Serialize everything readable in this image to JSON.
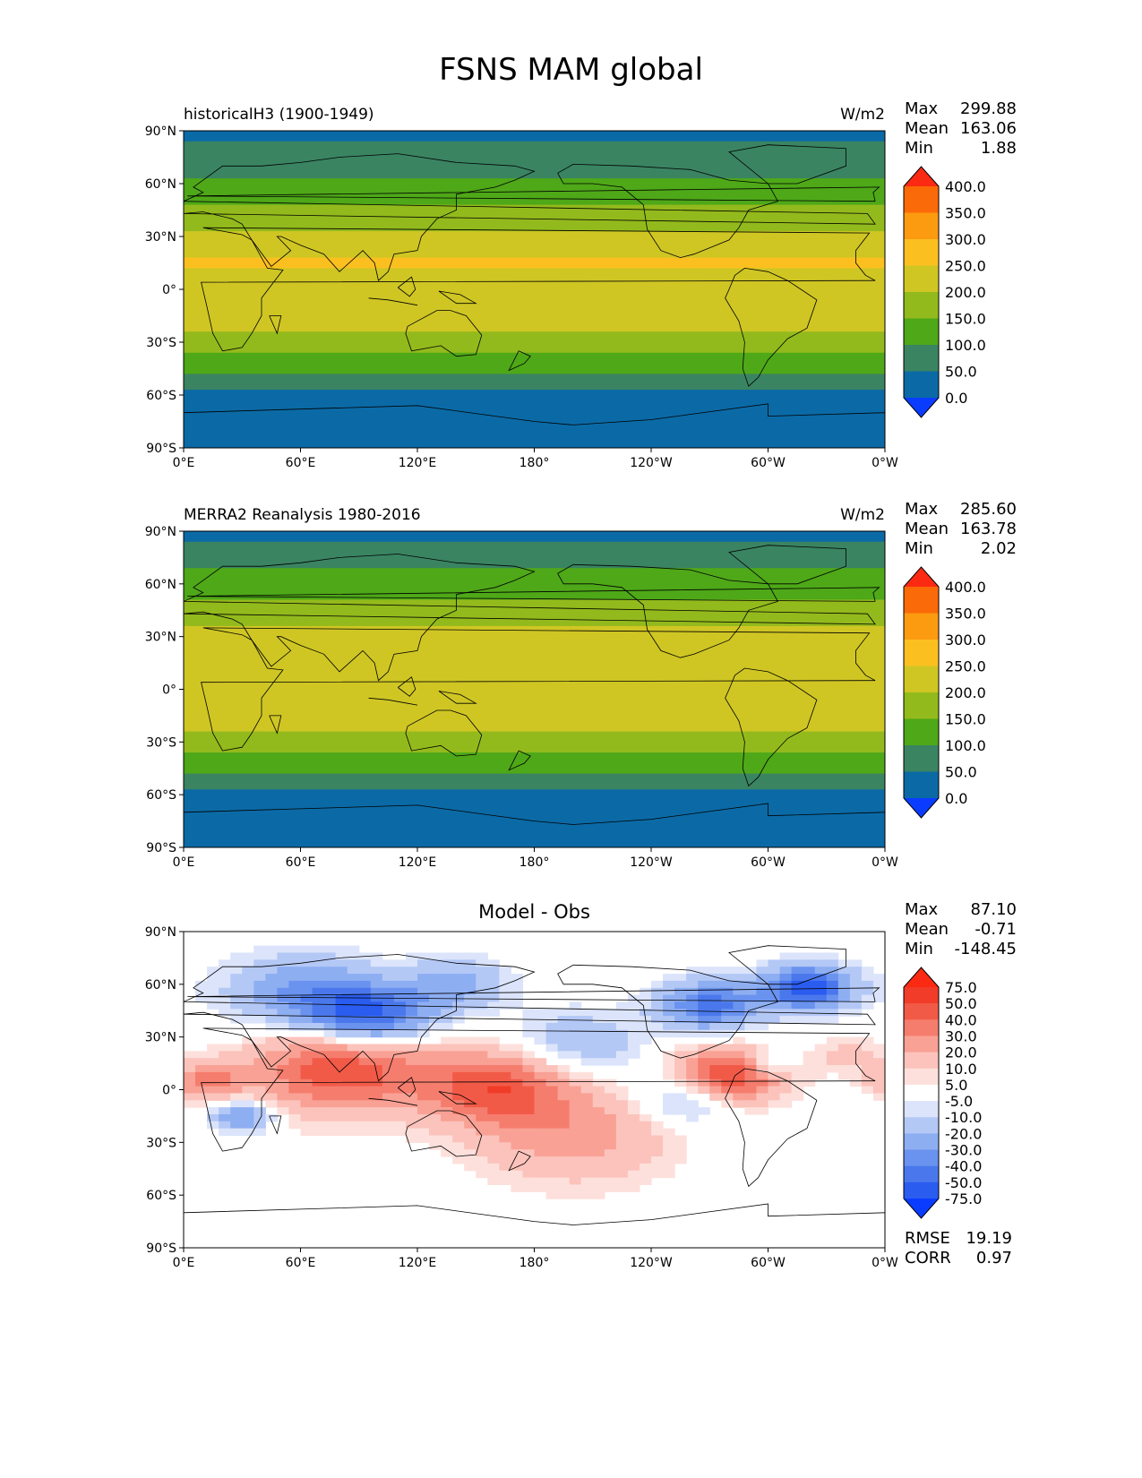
{
  "figure": {
    "title": "FSNS MAM global"
  },
  "chart_data": [
    {
      "type": "heatmap",
      "panel": "test",
      "title": "historicalH3 (1900-1949)",
      "units": "W/m2",
      "stats": {
        "max_label": "Max",
        "max": "299.88",
        "mean_label": "Mean",
        "mean": "163.06",
        "min_label": "Min",
        "min": "1.88"
      },
      "colorbar": {
        "levels": [
          "0.0",
          "50.0",
          "100.0",
          "150.0",
          "200.0",
          "250.0",
          "300.0",
          "350.0",
          "400.0"
        ],
        "colors": [
          "#0a3cff",
          "#0b6aa6",
          "#3a8462",
          "#4ea818",
          "#93ba1c",
          "#cfc624",
          "#fbc020",
          "#fc9a10",
          "#fb6a08",
          "#fc2a12"
        ]
      },
      "x_ticks": [
        "0°E",
        "60°E",
        "120°E",
        "180°",
        "120°W",
        "60°W",
        "0°W"
      ],
      "y_ticks": [
        "90°N",
        "60°N",
        "30°N",
        "0°",
        "30°S",
        "60°S",
        "90°S"
      ],
      "zonal_band_values": [
        {
          "lat": 90,
          "value": 25
        },
        {
          "lat": 75,
          "value": 75
        },
        {
          "lat": 60,
          "value": 110
        },
        {
          "lat": 45,
          "value": 165
        },
        {
          "lat": 30,
          "value": 210
        },
        {
          "lat": 15,
          "value": 255
        },
        {
          "lat": 0,
          "value": 225
        },
        {
          "lat": -15,
          "value": 235
        },
        {
          "lat": -30,
          "value": 175
        },
        {
          "lat": -45,
          "value": 120
        },
        {
          "lat": -60,
          "value": 40
        },
        {
          "lat": -90,
          "value": 10
        }
      ]
    },
    {
      "type": "heatmap",
      "panel": "reference",
      "title": "MERRA2 Reanalysis 1980-2016",
      "units": "W/m2",
      "stats": {
        "max_label": "Max",
        "max": "285.60",
        "mean_label": "Mean",
        "mean": "163.78",
        "min_label": "Min",
        "min": "2.02"
      },
      "colorbar": {
        "levels": [
          "0.0",
          "50.0",
          "100.0",
          "150.0",
          "200.0",
          "250.0",
          "300.0",
          "350.0",
          "400.0"
        ],
        "colors": [
          "#0a3cff",
          "#0b6aa6",
          "#3a8462",
          "#4ea818",
          "#93ba1c",
          "#cfc624",
          "#fbc020",
          "#fc9a10",
          "#fb6a08",
          "#fc2a12"
        ]
      },
      "x_ticks": [
        "0°E",
        "60°E",
        "120°E",
        "180°",
        "120°W",
        "60°W",
        "0°W"
      ],
      "y_ticks": [
        "90°N",
        "60°N",
        "30°N",
        "0°",
        "30°S",
        "60°S",
        "90°S"
      ],
      "zonal_band_values": [
        {
          "lat": 90,
          "value": 25
        },
        {
          "lat": 75,
          "value": 80
        },
        {
          "lat": 60,
          "value": 120
        },
        {
          "lat": 45,
          "value": 170
        },
        {
          "lat": 30,
          "value": 215
        },
        {
          "lat": 15,
          "value": 245
        },
        {
          "lat": 0,
          "value": 215
        },
        {
          "lat": -15,
          "value": 230
        },
        {
          "lat": -30,
          "value": 170
        },
        {
          "lat": -45,
          "value": 115
        },
        {
          "lat": -60,
          "value": 40
        },
        {
          "lat": -90,
          "value": 10
        }
      ]
    },
    {
      "type": "heatmap",
      "panel": "difference",
      "title": "Model - Obs",
      "units": "",
      "stats": {
        "max_label": "Max",
        "max": "87.10",
        "mean_label": "Mean",
        "mean": "-0.71",
        "min_label": "Min",
        "min": "-148.45"
      },
      "metrics": {
        "rmse_label": "RMSE",
        "rmse": "19.19",
        "corr_label": "CORR",
        "corr": "0.97"
      },
      "colorbar": {
        "levels": [
          "-75.0",
          "-50.0",
          "-40.0",
          "-30.0",
          "-20.0",
          "-10.0",
          "-5.0",
          "5.0",
          "10.0",
          "20.0",
          "30.0",
          "40.0",
          "50.0",
          "75.0"
        ],
        "colors": [
          "#0a3cff",
          "#2a5cf0",
          "#4a78ec",
          "#6a92ef",
          "#8eaef2",
          "#b4c8f6",
          "#dbe4fa",
          "#ffffff",
          "#fde0dc",
          "#fbc3bb",
          "#f9a195",
          "#f57d6e",
          "#f25a48",
          "#f03c28",
          "#fc2a12"
        ]
      },
      "x_ticks": [
        "0°E",
        "60°E",
        "120°E",
        "180°",
        "120°W",
        "60°W",
        "0°W"
      ],
      "y_ticks": [
        "90°N",
        "60°N",
        "30°N",
        "0°",
        "30°S",
        "60°S",
        "90°S"
      ]
    }
  ]
}
